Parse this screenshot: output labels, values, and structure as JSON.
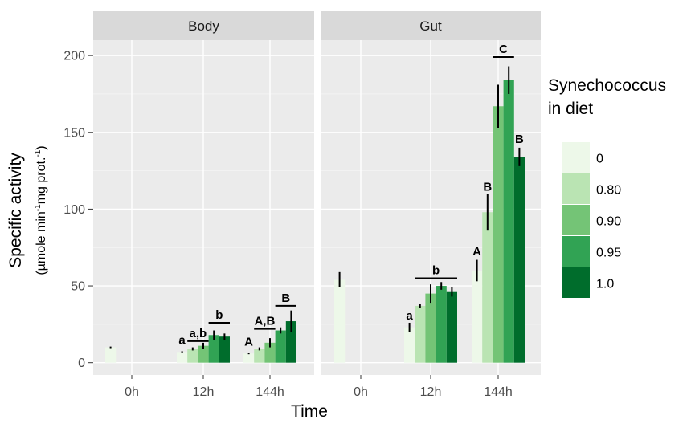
{
  "chart_data": {
    "type": "bar",
    "facets": [
      "Body",
      "Gut"
    ],
    "categories": [
      "0h",
      "12h",
      "144h"
    ],
    "xlabel": "Time",
    "ylabel": "Specific activity",
    "ylabel_units": {
      "prefix": "(µmole min",
      "sup1": "-1",
      "mid": "mg prot.",
      "sup2": "-1",
      "suffix": ")"
    },
    "ylim": [
      -8,
      210
    ],
    "yticks": [
      0,
      50,
      100,
      150,
      200
    ],
    "grid": true,
    "legend": {
      "title": [
        "Synechococcus",
        "in diet"
      ],
      "placement": "right",
      "entries": [
        "0",
        "0.80",
        "0.90",
        "0.95",
        "1.0"
      ]
    },
    "colors": [
      "#edf8e9",
      "#bae4b3",
      "#74c476",
      "#31a354",
      "#006d2c"
    ],
    "series": [
      {
        "name": "0",
        "Body": [
          10,
          7,
          6
        ],
        "Gut": [
          54,
          23,
          60
        ]
      },
      {
        "name": "0.80",
        "Body": [
          null,
          9,
          9
        ],
        "Gut": [
          null,
          37,
          98
        ]
      },
      {
        "name": "0.90",
        "Body": [
          null,
          11,
          13
        ],
        "Gut": [
          null,
          45,
          167
        ]
      },
      {
        "name": "0.95",
        "Body": [
          null,
          18,
          21
        ],
        "Gut": [
          null,
          50,
          184
        ]
      },
      {
        "name": "1.0",
        "Body": [
          null,
          17,
          27
        ],
        "Gut": [
          null,
          46,
          134
        ]
      }
    ],
    "errors": [
      {
        "name": "0",
        "Body": [
          0.5,
          0.5,
          0.5
        ],
        "Gut": [
          5,
          3,
          7
        ]
      },
      {
        "name": "0.80",
        "Body": [
          null,
          1,
          1
        ],
        "Gut": [
          null,
          1.5,
          12
        ]
      },
      {
        "name": "0.90",
        "Body": [
          null,
          2,
          3
        ],
        "Gut": [
          null,
          6,
          14
        ]
      },
      {
        "name": "0.95",
        "Body": [
          null,
          3,
          2
        ],
        "Gut": [
          null,
          2.5,
          9
        ]
      },
      {
        "name": "1.0",
        "Body": [
          null,
          2,
          7
        ],
        "Gut": [
          null,
          3,
          6
        ]
      }
    ],
    "annotations": [
      {
        "text": "a",
        "facet": "Body",
        "time": "12h",
        "bars": [
          0,
          0
        ],
        "y": 12,
        "line": false
      },
      {
        "text": "a,b",
        "facet": "Body",
        "time": "12h",
        "bars": [
          1,
          2
        ],
        "y": 14,
        "line": true
      },
      {
        "text": "b",
        "facet": "Body",
        "time": "12h",
        "bars": [
          3,
          4
        ],
        "y": 26,
        "line": true
      },
      {
        "text": "A",
        "facet": "Body",
        "time": "144h",
        "bars": [
          0,
          0
        ],
        "y": 11,
        "line": false
      },
      {
        "text": "A,B",
        "facet": "Body",
        "time": "144h",
        "bars": [
          1,
          2
        ],
        "y": 22,
        "line": true
      },
      {
        "text": "B",
        "facet": "Body",
        "time": "144h",
        "bars": [
          3,
          4
        ],
        "y": 37,
        "line": true
      },
      {
        "text": "a",
        "facet": "Gut",
        "time": "12h",
        "bars": [
          0,
          0
        ],
        "y": 28,
        "line": false
      },
      {
        "text": "b",
        "facet": "Gut",
        "time": "12h",
        "bars": [
          1,
          4
        ],
        "y": 55,
        "line": true
      },
      {
        "text": "A",
        "facet": "Gut",
        "time": "144h",
        "bars": [
          0,
          0
        ],
        "y": 70,
        "line": false
      },
      {
        "text": "B",
        "facet": "Gut",
        "time": "144h",
        "bars": [
          1,
          1
        ],
        "y": 112,
        "line": false
      },
      {
        "text": "C",
        "facet": "Gut",
        "time": "144h",
        "bars": [
          2,
          3
        ],
        "y": 199,
        "line": true
      },
      {
        "text": "B",
        "facet": "Gut",
        "time": "144h",
        "bars": [
          4,
          4
        ],
        "y": 143,
        "line": false
      }
    ]
  }
}
